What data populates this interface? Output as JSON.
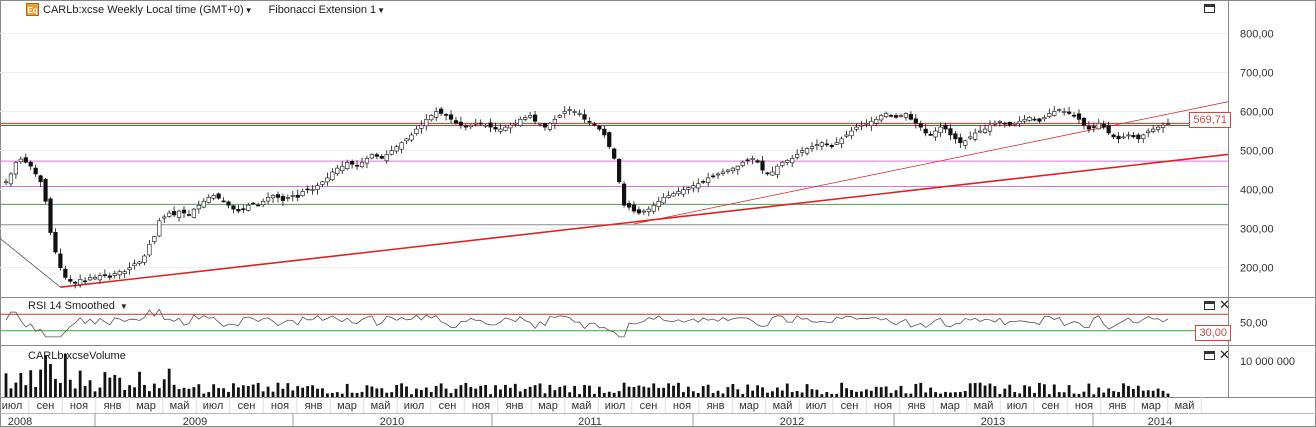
{
  "header": {
    "instrument_label": "CARLb:xcse Weekly Local time (GMT+0)",
    "study_label": "Fibonacci Extension 1"
  },
  "rsi_panel": {
    "label": "RSI 14 Smoothed",
    "value_tag": "30,00"
  },
  "volume_panel": {
    "label": "CARLb:xcseVolume"
  },
  "price_tag": "569,71",
  "colors": {
    "fib_line": "#cc3333",
    "fib_pink": "#e070e0",
    "fib_green": "#4aa04a",
    "fib_gray": "#888888",
    "trend_red": "#dd2222",
    "rsi_top": "#cc3333",
    "rsi_bottom": "#33aa33",
    "candle": "#111111"
  },
  "chart_data": [
    {
      "type": "line",
      "title": "CARLb:xcse Weekly Local time (GMT+0)",
      "y_tick_labels": [
        "200,00",
        "300,00",
        "400,00",
        "500,00",
        "600,00",
        "700,00",
        "800,00"
      ],
      "y_ticks": [
        200,
        300,
        400,
        500,
        600,
        700,
        800
      ],
      "ylim": [
        130,
        860
      ],
      "x_month_labels": [
        "июл",
        "сен",
        "ноя",
        "янв",
        "мар",
        "май",
        "июл",
        "сен",
        "ноя",
        "янв",
        "мар",
        "май",
        "июл",
        "сен",
        "ноя",
        "янв",
        "мар",
        "май",
        "июл",
        "сен",
        "ноя",
        "янв",
        "мар",
        "май",
        "июл",
        "сен",
        "ноя",
        "янв",
        "мар",
        "май",
        "июл",
        "сен",
        "ноя",
        "янв",
        "мар",
        "май"
      ],
      "x_year_labels": [
        "2008",
        "2009",
        "2010",
        "2011",
        "2012",
        "2013",
        "2014"
      ],
      "horizontal_levels": [
        {
          "value": 569.71,
          "color": "fib_line"
        },
        {
          "value": 564,
          "color": "fib_line"
        },
        {
          "value": 473,
          "color": "fib_pink"
        },
        {
          "value": 408,
          "color": "fib_pink"
        },
        {
          "value": 362,
          "color": "fib_green"
        },
        {
          "value": 310,
          "color": "fib_gray"
        }
      ],
      "series": [
        {
          "anchors": [
            [
              0,
              420
            ],
            [
              1,
              440
            ],
            [
              2,
              470
            ],
            [
              3,
              478
            ],
            [
              4,
              470
            ],
            [
              5,
              460
            ],
            [
              6,
              440
            ],
            [
              7,
              420
            ],
            [
              8,
              370
            ],
            [
              9,
              290
            ],
            [
              10,
              240
            ],
            [
              11,
              200
            ],
            [
              12,
              175
            ],
            [
              13,
              165
            ],
            [
              14,
              160
            ],
            [
              15,
              170
            ],
            [
              16,
              165
            ],
            [
              17,
              175
            ],
            [
              18,
              175
            ],
            [
              19,
              180
            ],
            [
              20,
              180
            ],
            [
              21,
              175
            ],
            [
              22,
              185
            ],
            [
              23,
              190
            ],
            [
              24,
              190
            ],
            [
              25,
              200
            ],
            [
              26,
              210
            ],
            [
              27,
              215
            ],
            [
              28,
              230
            ],
            [
              29,
              260
            ],
            [
              30,
              280
            ],
            [
              31,
              320
            ],
            [
              32,
              330
            ],
            [
              33,
              340
            ],
            [
              34,
              335
            ],
            [
              35,
              345
            ],
            [
              36,
              340
            ],
            [
              37,
              335
            ],
            [
              38,
              350
            ],
            [
              39,
              360
            ],
            [
              40,
              370
            ],
            [
              41,
              380
            ],
            [
              42,
              385
            ],
            [
              43,
              378
            ],
            [
              44,
              370
            ],
            [
              45,
              360
            ],
            [
              46,
              350
            ],
            [
              47,
              345
            ],
            [
              48,
              350
            ],
            [
              49,
              360
            ],
            [
              50,
              365
            ],
            [
              51,
              360
            ],
            [
              52,
              370
            ],
            [
              53,
              380
            ],
            [
              54,
              385
            ],
            [
              55,
              380
            ],
            [
              56,
              372
            ],
            [
              57,
              380
            ],
            [
              58,
              385
            ],
            [
              59,
              380
            ],
            [
              60,
              395
            ],
            [
              61,
              400
            ],
            [
              62,
              400
            ],
            [
              63,
              410
            ],
            [
              64,
              420
            ],
            [
              65,
              430
            ],
            [
              66,
              445
            ],
            [
              67,
              455
            ],
            [
              68,
              460
            ],
            [
              69,
              470
            ],
            [
              70,
              465
            ],
            [
              71,
              460
            ],
            [
              72,
              470
            ],
            [
              73,
              480
            ],
            [
              74,
              490
            ],
            [
              75,
              485
            ],
            [
              76,
              480
            ],
            [
              77,
              490
            ],
            [
              78,
              500
            ],
            [
              79,
              510
            ],
            [
              80,
              520
            ],
            [
              81,
              530
            ],
            [
              82,
              540
            ],
            [
              83,
              555
            ],
            [
              84,
              565
            ],
            [
              85,
              580
            ],
            [
              86,
              590
            ],
            [
              87,
              600
            ],
            [
              88,
              595
            ],
            [
              89,
              590
            ],
            [
              90,
              580
            ],
            [
              91,
              570
            ],
            [
              92,
              565
            ],
            [
              93,
              560
            ],
            [
              94,
              565
            ],
            [
              95,
              570
            ],
            [
              96,
              570
            ],
            [
              97,
              565
            ],
            [
              98,
              560
            ],
            [
              99,
              555
            ],
            [
              100,
              555
            ],
            [
              101,
              560
            ],
            [
              102,
              565
            ],
            [
              103,
              570
            ],
            [
              104,
              580
            ],
            [
              105,
              585
            ],
            [
              106,
              590
            ],
            [
              107,
              575
            ],
            [
              108,
              570
            ],
            [
              109,
              560
            ],
            [
              110,
              570
            ],
            [
              111,
              580
            ],
            [
              112,
              590
            ],
            [
              113,
              600
            ],
            [
              114,
              605
            ],
            [
              115,
              600
            ],
            [
              116,
              595
            ],
            [
              117,
              580
            ],
            [
              118,
              575
            ],
            [
              119,
              565
            ],
            [
              120,
              555
            ],
            [
              121,
              540
            ],
            [
              122,
              510
            ],
            [
              123,
              480
            ],
            [
              124,
              420
            ],
            [
              125,
              360
            ],
            [
              126,
              355
            ],
            [
              127,
              345
            ],
            [
              128,
              340
            ],
            [
              129,
              345
            ],
            [
              130,
              350
            ],
            [
              131,
              360
            ],
            [
              132,
              370
            ],
            [
              133,
              380
            ],
            [
              134,
              385
            ],
            [
              135,
              390
            ],
            [
              136,
              395
            ],
            [
              137,
              400
            ],
            [
              138,
              405
            ],
            [
              139,
              410
            ],
            [
              140,
              415
            ],
            [
              141,
              420
            ],
            [
              142,
              430
            ],
            [
              143,
              435
            ],
            [
              144,
              440
            ],
            [
              145,
              445
            ],
            [
              146,
              450
            ],
            [
              147,
              455
            ],
            [
              148,
              460
            ],
            [
              149,
              470
            ],
            [
              150,
              475
            ],
            [
              151,
              480
            ],
            [
              152,
              470
            ],
            [
              153,
              450
            ],
            [
              154,
              440
            ],
            [
              155,
              445
            ],
            [
              156,
              460
            ],
            [
              157,
              470
            ],
            [
              158,
              475
            ],
            [
              159,
              480
            ],
            [
              160,
              490
            ],
            [
              161,
              500
            ],
            [
              162,
              505
            ],
            [
              163,
              510
            ],
            [
              164,
              515
            ],
            [
              165,
              520
            ],
            [
              166,
              515
            ],
            [
              167,
              510
            ],
            [
              168,
              520
            ],
            [
              169,
              530
            ],
            [
              170,
              540
            ],
            [
              171,
              550
            ],
            [
              172,
              560
            ],
            [
              173,
              565
            ],
            [
              174,
              570
            ],
            [
              175,
              575
            ],
            [
              176,
              580
            ],
            [
              177,
              590
            ],
            [
              178,
              595
            ],
            [
              179,
              590
            ],
            [
              180,
              585
            ],
            [
              181,
              590
            ],
            [
              182,
              595
            ],
            [
              183,
              580
            ],
            [
              184,
              570
            ],
            [
              185,
              560
            ],
            [
              186,
              545
            ],
            [
              187,
              540
            ],
            [
              188,
              550
            ],
            [
              189,
              560
            ],
            [
              190,
              555
            ],
            [
              191,
              540
            ],
            [
              192,
              530
            ],
            [
              193,
              520
            ],
            [
              194,
              525
            ],
            [
              195,
              535
            ],
            [
              196,
              545
            ],
            [
              197,
              550
            ],
            [
              198,
              555
            ],
            [
              199,
              565
            ],
            [
              200,
              570
            ],
            [
              201,
              575
            ],
            [
              202,
              570
            ],
            [
              203,
              565
            ],
            [
              204,
              570
            ],
            [
              205,
              575
            ],
            [
              206,
              580
            ],
            [
              207,
              585
            ],
            [
              208,
              580
            ],
            [
              209,
              575
            ],
            [
              210,
              585
            ],
            [
              211,
              595
            ],
            [
              212,
              600
            ],
            [
              213,
              605
            ],
            [
              214,
              600
            ],
            [
              215,
              595
            ],
            [
              216,
              590
            ],
            [
              217,
              580
            ],
            [
              218,
              565
            ],
            [
              219,
              555
            ],
            [
              220,
              560
            ],
            [
              221,
              570
            ],
            [
              222,
              560
            ],
            [
              223,
              545
            ],
            [
              224,
              535
            ],
            [
              225,
              530
            ],
            [
              226,
              535
            ],
            [
              227,
              540
            ],
            [
              228,
              535
            ],
            [
              229,
              530
            ],
            [
              230,
              540
            ],
            [
              231,
              550
            ],
            [
              232,
              555
            ],
            [
              233,
              560
            ],
            [
              234,
              565
            ],
            [
              235,
              569
            ]
          ]
        }
      ]
    },
    {
      "type": "line",
      "title": "RSI 14 Smoothed",
      "ylim": [
        0,
        100
      ],
      "y_tick_labels": [
        "50,00"
      ],
      "reference_lines": [
        70,
        30
      ]
    },
    {
      "type": "bar",
      "title": "CARLb:xcseVolume",
      "y_tick_labels": [
        "10 000 000"
      ],
      "ylim": [
        0,
        13000000
      ]
    }
  ]
}
